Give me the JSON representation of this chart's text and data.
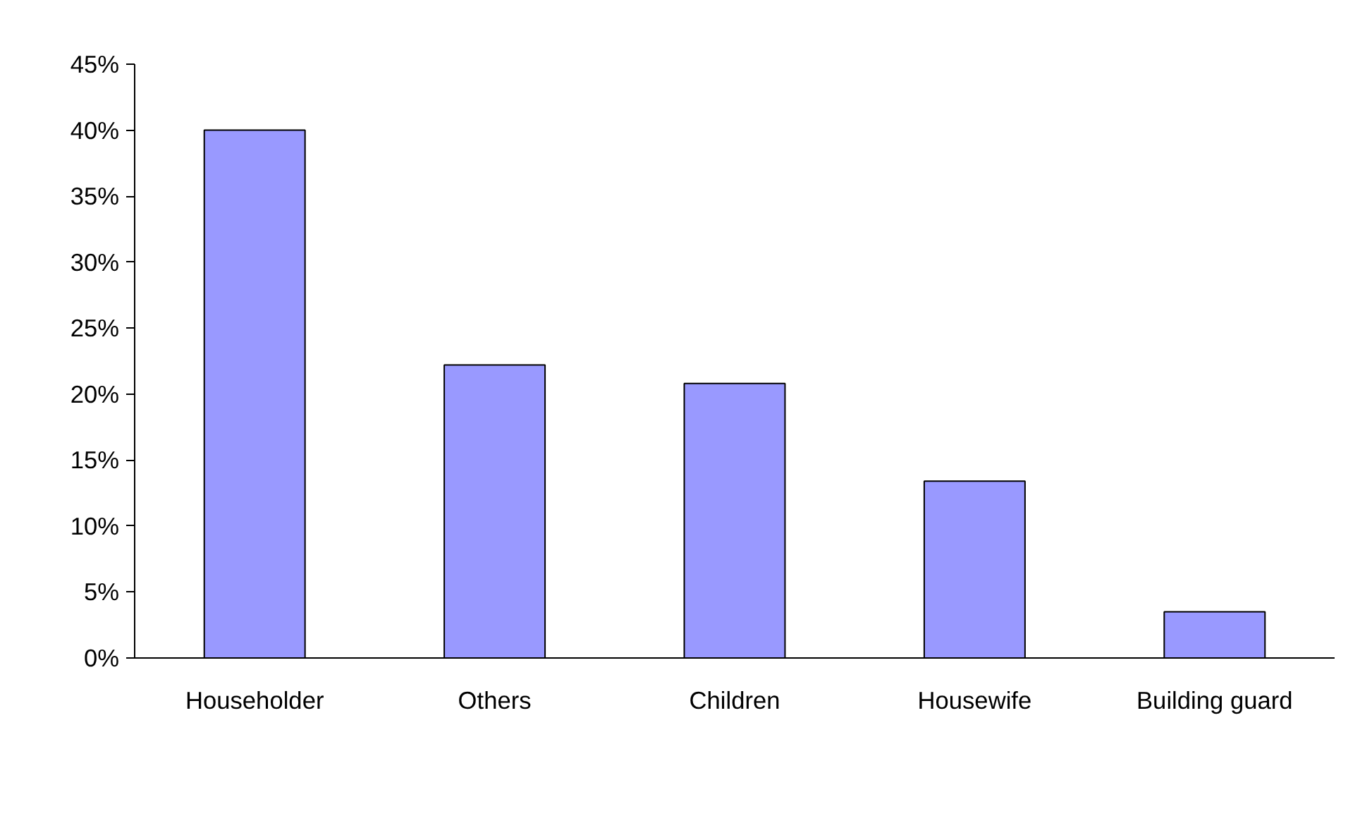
{
  "chart_data": {
    "type": "bar",
    "categories": [
      "Householder",
      "Others",
      "Children",
      "Housewife",
      "Building guard"
    ],
    "values": [
      40,
      22.2,
      20.8,
      13.4,
      3.5
    ],
    "color": "#9999ff",
    "ylim": [
      0,
      45
    ],
    "yticks": [
      {
        "value": 0,
        "label": "0%"
      },
      {
        "value": 5,
        "label": "5%"
      },
      {
        "value": 10,
        "label": "10%"
      },
      {
        "value": 15,
        "label": "15%"
      },
      {
        "value": 20,
        "label": "20%"
      },
      {
        "value": 25,
        "label": "25%"
      },
      {
        "value": 30,
        "label": "30%"
      },
      {
        "value": 35,
        "label": "35%"
      },
      {
        "value": 40,
        "label": "40%"
      },
      {
        "value": 45,
        "label": "45%"
      }
    ],
    "grid": false
  }
}
